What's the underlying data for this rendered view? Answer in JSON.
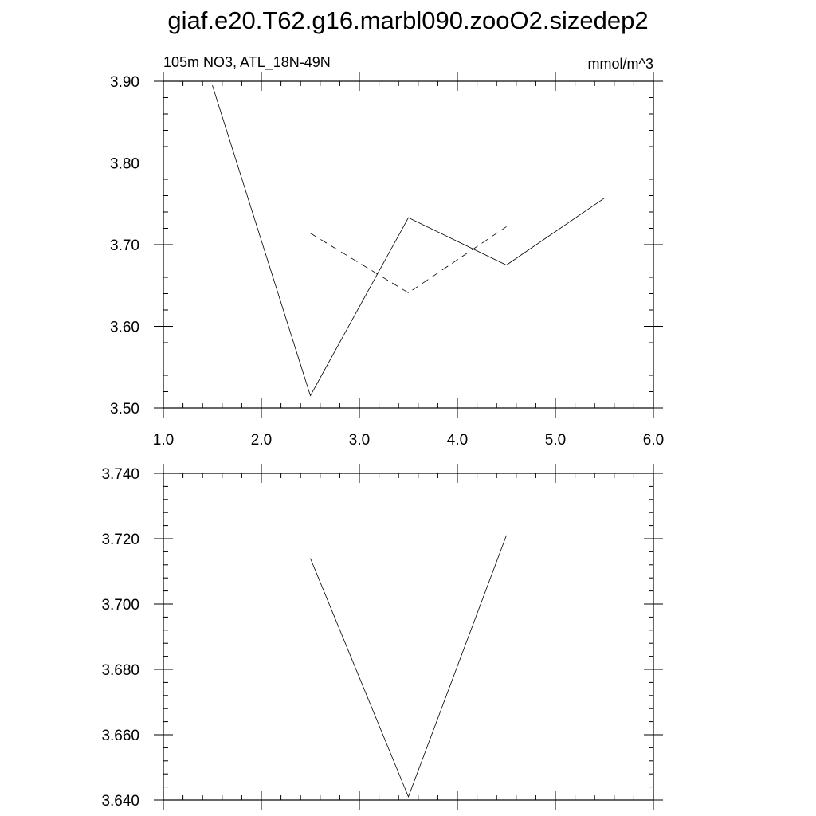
{
  "title": "giaf.e20.T62.g16.marbl090.zooO2.sizedep2",
  "chart_data": [
    {
      "type": "line",
      "left_label": "105m NO3, ATL_18N-49N",
      "right_label": "mmol/m^3",
      "xlim": [
        1.0,
        6.0
      ],
      "ylim": [
        3.5,
        3.9
      ],
      "x_ticks": [
        "1.0",
        "2.0",
        "3.0",
        "4.0",
        "5.0",
        "6.0"
      ],
      "y_ticks": [
        "3.50",
        "3.60",
        "3.70",
        "3.80",
        "3.90"
      ],
      "series": [
        {
          "style": "solid",
          "x": [
            1.5,
            2.5,
            3.5,
            4.5,
            5.5
          ],
          "y": [
            3.895,
            3.515,
            3.733,
            3.675,
            3.757
          ]
        },
        {
          "style": "dashed",
          "x": [
            2.5,
            3.5,
            4.5
          ],
          "y": [
            3.714,
            3.641,
            3.722
          ]
        }
      ]
    },
    {
      "type": "line",
      "xlim": [
        1.0,
        6.0
      ],
      "ylim": [
        3.64,
        3.74
      ],
      "y_ticks": [
        "3.640",
        "3.660",
        "3.680",
        "3.700",
        "3.720",
        "3.740"
      ],
      "series": [
        {
          "style": "solid",
          "x": [
            2.5,
            3.5,
            4.5
          ],
          "y": [
            3.714,
            3.641,
            3.721
          ]
        }
      ]
    }
  ]
}
